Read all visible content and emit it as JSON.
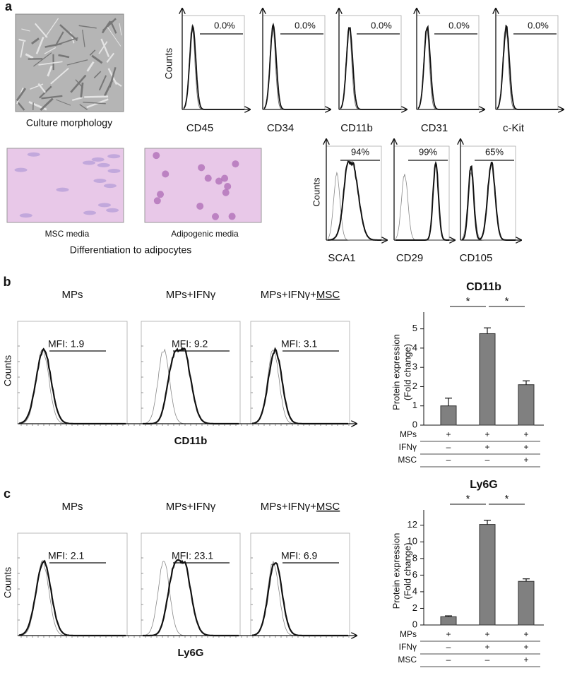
{
  "panel_a": {
    "label": "a",
    "morphology_caption": "Culture morphology",
    "media_captions": [
      "MSC media",
      "Adipogenic media"
    ],
    "differentiation_caption": "Differentiation to adipocytes",
    "counts_label": "Counts",
    "negative_markers": [
      {
        "name": "CD45",
        "percent": "0.0%"
      },
      {
        "name": "CD34",
        "percent": "0.0%"
      },
      {
        "name": "CD11b",
        "percent": "0.0%"
      },
      {
        "name": "CD31",
        "percent": "0.0%"
      },
      {
        "name": "c-Kit",
        "percent": "0.0%"
      }
    ],
    "positive_markers": [
      {
        "name": "SCA1",
        "percent": "94%"
      },
      {
        "name": "CD29",
        "percent": "99%"
      },
      {
        "name": "CD105",
        "percent": "65%"
      }
    ]
  },
  "panel_b": {
    "label": "b",
    "conditions": [
      "MPs",
      "MPs+IFNγ",
      "MPs+IFNγ+"
    ],
    "underlined_suffix": "MSC",
    "mfi": [
      "MFI: 1.9",
      "MFI: 9.2",
      "MFI: 3.1"
    ],
    "counts_label": "Counts",
    "x_label": "CD11b"
  },
  "panel_c": {
    "label": "c",
    "conditions": [
      "MPs",
      "MPs+IFNγ",
      "MPs+IFNγ+"
    ],
    "underlined_suffix": "MSC",
    "mfi": [
      "MFI: 2.1",
      "MFI: 23.1",
      "MFI: 6.9"
    ],
    "counts_label": "Counts",
    "x_label": "Ly6G"
  },
  "chart_data": [
    {
      "type": "bar",
      "title": "CD11b",
      "y_label": [
        "Protein expression",
        "(Fold change)"
      ],
      "values": [
        1.0,
        4.75,
        2.1
      ],
      "errors": [
        0.4,
        0.3,
        0.2
      ],
      "color": "#808080",
      "ylim": [
        0,
        5.5
      ],
      "yticks": [
        0,
        1,
        2,
        3,
        4,
        5
      ],
      "significance_labels": [
        "*",
        "*"
      ],
      "rows": [
        {
          "name": "MPs",
          "marks": [
            "+",
            "+",
            "+"
          ]
        },
        {
          "name": "IFNγ",
          "marks": [
            "–",
            "+",
            "+"
          ]
        },
        {
          "name": "MSC",
          "marks": [
            "–",
            "–",
            "+"
          ]
        }
      ]
    },
    {
      "type": "bar",
      "title": "Ly6G",
      "y_label": [
        "Protein expression",
        "(Fold change)"
      ],
      "values": [
        1.0,
        12.1,
        5.25
      ],
      "errors": [
        0.1,
        0.5,
        0.3
      ],
      "color": "#808080",
      "ylim": [
        0,
        13
      ],
      "yticks": [
        0,
        2,
        4,
        6,
        8,
        10,
        12
      ],
      "significance_labels": [
        "*",
        "*"
      ],
      "rows": [
        {
          "name": "MPs",
          "marks": [
            "+",
            "+",
            "+"
          ]
        },
        {
          "name": "IFNγ",
          "marks": [
            "–",
            "+",
            "+"
          ]
        },
        {
          "name": "MSC",
          "marks": [
            "–",
            "–",
            "+"
          ]
        }
      ]
    }
  ]
}
